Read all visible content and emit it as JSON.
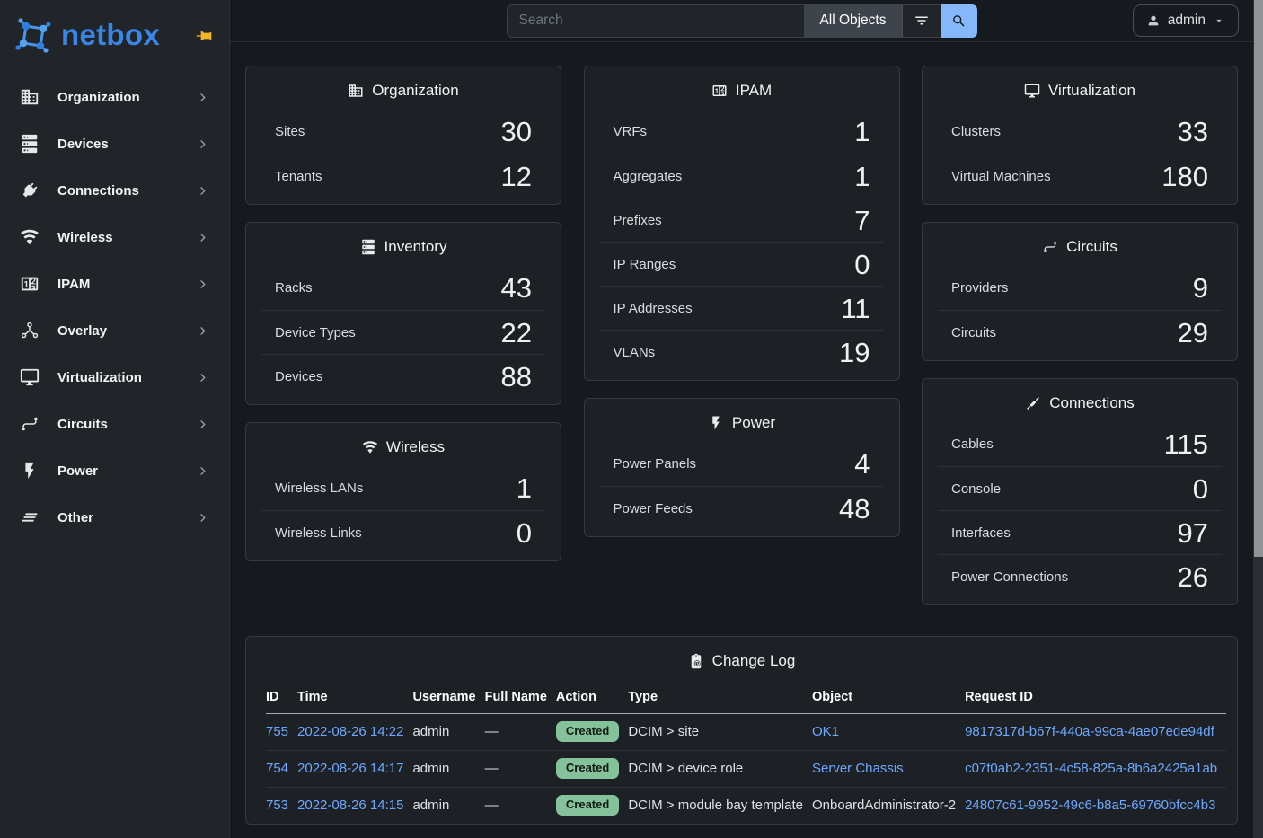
{
  "brand": {
    "name": "netbox"
  },
  "topbar": {
    "search_placeholder": "Search",
    "scope_label": "All Objects",
    "user_label": "admin"
  },
  "sidebar": {
    "items": [
      {
        "label": "Organization",
        "icon": "building"
      },
      {
        "label": "Devices",
        "icon": "server"
      },
      {
        "label": "Connections",
        "icon": "plug"
      },
      {
        "label": "Wireless",
        "icon": "wifi"
      },
      {
        "label": "IPAM",
        "icon": "counter"
      },
      {
        "label": "Overlay",
        "icon": "graph"
      },
      {
        "label": "Virtualization",
        "icon": "monitor"
      },
      {
        "label": "Circuits",
        "icon": "transit"
      },
      {
        "label": "Power",
        "icon": "bolt"
      },
      {
        "label": "Other",
        "icon": "stacked-lines"
      }
    ]
  },
  "dashboard": {
    "columns": [
      [
        {
          "title": "Organization",
          "icon": "building",
          "rows": [
            {
              "label": "Sites",
              "value": "30"
            },
            {
              "label": "Tenants",
              "value": "12"
            }
          ]
        },
        {
          "title": "Inventory",
          "icon": "server",
          "rows": [
            {
              "label": "Racks",
              "value": "43"
            },
            {
              "label": "Device Types",
              "value": "22"
            },
            {
              "label": "Devices",
              "value": "88"
            }
          ]
        },
        {
          "title": "Wireless",
          "icon": "wifi",
          "rows": [
            {
              "label": "Wireless LANs",
              "value": "1"
            },
            {
              "label": "Wireless Links",
              "value": "0"
            }
          ]
        }
      ],
      [
        {
          "title": "IPAM",
          "icon": "counter",
          "rows": [
            {
              "label": "VRFs",
              "value": "1"
            },
            {
              "label": "Aggregates",
              "value": "1"
            },
            {
              "label": "Prefixes",
              "value": "7"
            },
            {
              "label": "IP Ranges",
              "value": "0"
            },
            {
              "label": "IP Addresses",
              "value": "11"
            },
            {
              "label": "VLANs",
              "value": "19"
            }
          ]
        },
        {
          "title": "Power",
          "icon": "bolt",
          "rows": [
            {
              "label": "Power Panels",
              "value": "4"
            },
            {
              "label": "Power Feeds",
              "value": "48"
            }
          ]
        }
      ],
      [
        {
          "title": "Virtualization",
          "icon": "monitor",
          "rows": [
            {
              "label": "Clusters",
              "value": "33"
            },
            {
              "label": "Virtual Machines",
              "value": "180"
            }
          ]
        },
        {
          "title": "Circuits",
          "icon": "transit",
          "rows": [
            {
              "label": "Providers",
              "value": "9"
            },
            {
              "label": "Circuits",
              "value": "29"
            }
          ]
        },
        {
          "title": "Connections",
          "icon": "cable",
          "rows": [
            {
              "label": "Cables",
              "value": "115"
            },
            {
              "label": "Console",
              "value": "0"
            },
            {
              "label": "Interfaces",
              "value": "97"
            },
            {
              "label": "Power Connections",
              "value": "26"
            }
          ]
        }
      ]
    ]
  },
  "changelog": {
    "title": "Change Log",
    "icon": "clipboard-clock",
    "columns": [
      "ID",
      "Time",
      "Username",
      "Full Name",
      "Action",
      "Type",
      "Object",
      "Request ID"
    ],
    "rows": [
      {
        "id": "755",
        "time": "2022-08-26 14:22",
        "username": "admin",
        "full_name": "—",
        "action": "Created",
        "type": "DCIM > site",
        "object": "OK1",
        "object_is_link": true,
        "request_id": "9817317d-b67f-440a-99ca-4ae07ede94df"
      },
      {
        "id": "754",
        "time": "2022-08-26 14:17",
        "username": "admin",
        "full_name": "—",
        "action": "Created",
        "type": "DCIM > device role",
        "object": "Server Chassis",
        "object_is_link": true,
        "request_id": "c07f0ab2-2351-4c58-825a-8b6a2425a1ab"
      },
      {
        "id": "753",
        "time": "2022-08-26 14:15",
        "username": "admin",
        "full_name": "—",
        "action": "Created",
        "type": "DCIM > module bay template",
        "object": "OnboardAdministrator-2",
        "object_is_link": false,
        "request_id": "24807c61-9952-49c6-b8a5-69760bfcc4b3"
      }
    ]
  },
  "colors": {
    "brand_blue": "#3a86e8",
    "link_blue": "#6ea8fe",
    "badge_green_bg": "#85c29c",
    "badge_green_text": "#101a13",
    "pin_yellow": "#f0b429",
    "search_button_blue": "#85b8fa"
  }
}
